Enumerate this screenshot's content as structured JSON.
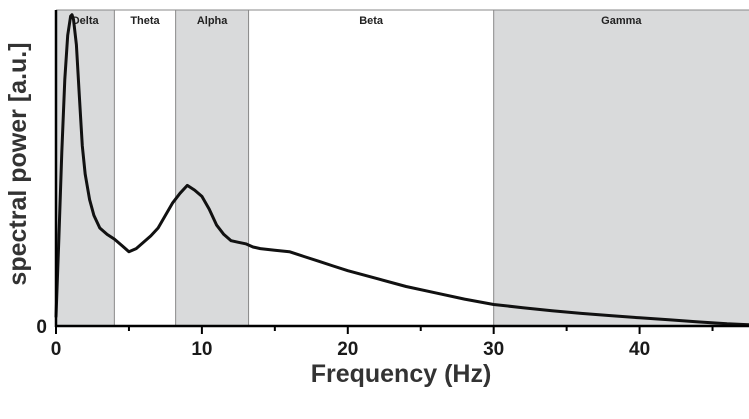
{
  "chart_data": {
    "type": "line",
    "title": "",
    "xlabel": "Frequency (Hz)",
    "ylabel": "spectral power [a.u.]",
    "xlim": [
      0,
      47.5
    ],
    "ylim": [
      0,
      1.0
    ],
    "x_ticks": [
      {
        "value": 0,
        "label": "0"
      },
      {
        "value": 10,
        "label": "10"
      },
      {
        "value": 20,
        "label": "20"
      },
      {
        "value": 30,
        "label": "30"
      },
      {
        "value": 40,
        "label": "40"
      }
    ],
    "y_ticks": [
      {
        "value": 0,
        "label": "0"
      }
    ],
    "grid": false,
    "legend": "none",
    "bands": [
      {
        "name": "Delta",
        "from": 0,
        "to": 4,
        "shaded": true
      },
      {
        "name": "Theta",
        "from": 4,
        "to": 8.2,
        "shaded": false
      },
      {
        "name": "Alpha",
        "from": 8.2,
        "to": 13.2,
        "shaded": true
      },
      {
        "name": "Beta",
        "from": 13.2,
        "to": 30,
        "shaded": false
      },
      {
        "name": "Gamma",
        "from": 30,
        "to": 47.5,
        "shaded": true
      }
    ],
    "colors": {
      "line": "#111111",
      "shaded_band": "#d9dadb",
      "band_border": "#888888",
      "axis": "#000000"
    },
    "series": [
      {
        "x": [
          0,
          0.2,
          0.4,
          0.6,
          0.8,
          1.0,
          1.1,
          1.2,
          1.4,
          1.6,
          1.8,
          2.0,
          2.3,
          2.6,
          3.0,
          3.5,
          4.0,
          4.5,
          5.0,
          5.5,
          6.0,
          6.5,
          7.0,
          7.5,
          8.0,
          8.5,
          9.0,
          9.5,
          10.0,
          10.5,
          11.0,
          11.5,
          12.0,
          12.5,
          13.0,
          13.5,
          14.0,
          15.0,
          16.0,
          17.0,
          18.0,
          19.0,
          20.0,
          22.0,
          24.0,
          26.0,
          28.0,
          30.0,
          32.0,
          34.0,
          36.0,
          38.0,
          40.0,
          42.0,
          44.0,
          46.0,
          47.5
        ],
        "y": [
          0.03,
          0.28,
          0.55,
          0.78,
          0.92,
          0.98,
          0.985,
          0.97,
          0.89,
          0.73,
          0.57,
          0.48,
          0.4,
          0.35,
          0.31,
          0.29,
          0.275,
          0.255,
          0.235,
          0.245,
          0.265,
          0.285,
          0.31,
          0.35,
          0.39,
          0.42,
          0.445,
          0.43,
          0.41,
          0.37,
          0.32,
          0.29,
          0.27,
          0.265,
          0.26,
          0.25,
          0.245,
          0.24,
          0.235,
          0.22,
          0.205,
          0.19,
          0.175,
          0.15,
          0.125,
          0.105,
          0.085,
          0.068,
          0.058,
          0.048,
          0.04,
          0.033,
          0.026,
          0.02,
          0.013,
          0.007,
          0.004
        ]
      }
    ]
  }
}
